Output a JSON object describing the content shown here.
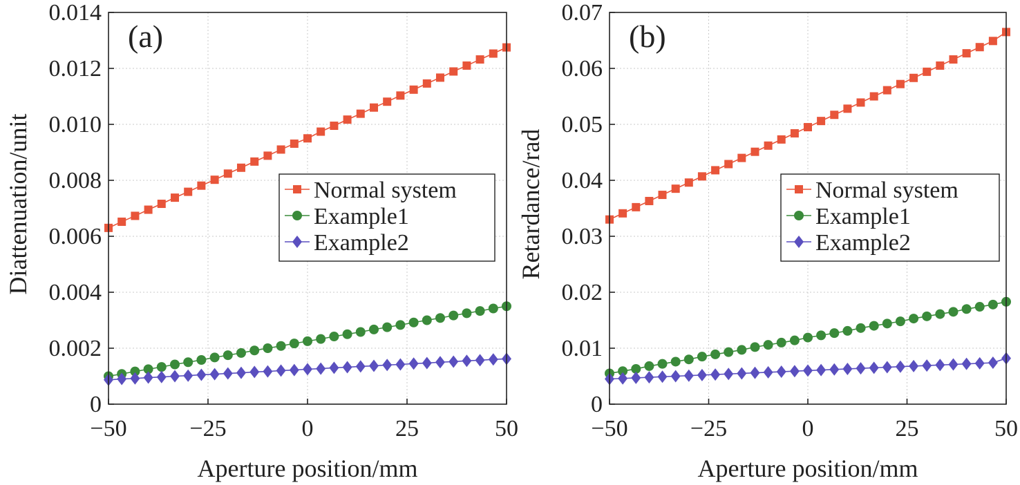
{
  "chart_data": [
    {
      "type": "line",
      "panel_label": "(a)",
      "xlabel": "Aperture position/mm",
      "ylabel": "Diattenuation/unit",
      "xlim": [
        -50,
        50
      ],
      "ylim": [
        0,
        0.014
      ],
      "x_ticks": [
        -50,
        -25,
        0,
        25,
        50
      ],
      "x_tick_labels": [
        "−50",
        "−25",
        "0",
        "25",
        "50"
      ],
      "y_ticks": [
        0,
        0.002,
        0.004,
        0.006,
        0.008,
        0.01,
        0.012,
        0.014
      ],
      "y_tick_labels": [
        "0",
        "0.002",
        "0.004",
        "0.006",
        "0.008",
        "0.010",
        "0.012",
        "0.014"
      ],
      "grid": true,
      "legend_position": "middle-right",
      "x": [
        -50,
        -46.67,
        -43.33,
        -40,
        -36.67,
        -33.33,
        -30,
        -26.67,
        -23.33,
        -20,
        -16.67,
        -13.33,
        -10,
        -6.67,
        -3.33,
        0,
        3.33,
        6.67,
        10,
        13.33,
        16.67,
        20,
        23.33,
        26.67,
        30,
        33.33,
        36.67,
        40,
        43.33,
        46.67,
        50
      ],
      "series": [
        {
          "name": "Normal system",
          "marker": "square",
          "color": "#e8553a",
          "values": [
            0.0063,
            0.00652,
            0.00673,
            0.00695,
            0.00716,
            0.00738,
            0.00759,
            0.00781,
            0.00802,
            0.00824,
            0.00845,
            0.00867,
            0.00888,
            0.0091,
            0.00931,
            0.0095,
            0.00974,
            0.00995,
            0.01017,
            0.01038,
            0.0106,
            0.01081,
            0.01103,
            0.01124,
            0.01146,
            0.01167,
            0.01189,
            0.0121,
            0.01232,
            0.01253,
            0.01275
          ]
        },
        {
          "name": "Example1",
          "marker": "circle",
          "color": "#3a8a3a",
          "values": [
            0.001,
            0.00108,
            0.00117,
            0.00125,
            0.00133,
            0.00142,
            0.0015,
            0.00158,
            0.00167,
            0.00175,
            0.00183,
            0.00192,
            0.002,
            0.00208,
            0.00217,
            0.00225,
            0.00233,
            0.00242,
            0.0025,
            0.00258,
            0.00267,
            0.00275,
            0.00283,
            0.00292,
            0.003,
            0.00308,
            0.00317,
            0.00325,
            0.00333,
            0.00342,
            0.0035
          ]
        },
        {
          "name": "Example2",
          "marker": "diamond",
          "color": "#5a4fbf",
          "values": [
            0.00087,
            0.0009,
            0.00092,
            0.00095,
            0.00097,
            0.001,
            0.00102,
            0.00105,
            0.00107,
            0.0011,
            0.00112,
            0.00115,
            0.00117,
            0.0012,
            0.00122,
            0.00125,
            0.00127,
            0.0013,
            0.00132,
            0.00135,
            0.00137,
            0.0014,
            0.00142,
            0.00145,
            0.00147,
            0.0015,
            0.00152,
            0.00155,
            0.00157,
            0.0016,
            0.00162
          ]
        }
      ]
    },
    {
      "type": "line",
      "panel_label": "(b)",
      "xlabel": "Aperture position/mm",
      "ylabel": "Retardance/rad",
      "xlim": [
        -50,
        50
      ],
      "ylim": [
        0,
        0.07
      ],
      "x_ticks": [
        -50,
        -25,
        0,
        25,
        50
      ],
      "x_tick_labels": [
        "−50",
        "−25",
        "0",
        "25",
        "50"
      ],
      "y_ticks": [
        0,
        0.01,
        0.02,
        0.03,
        0.04,
        0.05,
        0.06,
        0.07
      ],
      "y_tick_labels": [
        "0",
        "0.01",
        "0.02",
        "0.03",
        "0.04",
        "0.05",
        "0.06",
        "0.07"
      ],
      "grid": true,
      "legend_position": "middle-right",
      "x": [
        -50,
        -46.67,
        -43.33,
        -40,
        -36.67,
        -33.33,
        -30,
        -26.67,
        -23.33,
        -20,
        -16.67,
        -13.33,
        -10,
        -6.67,
        -3.33,
        0,
        3.33,
        6.67,
        10,
        13.33,
        16.67,
        20,
        23.33,
        26.67,
        30,
        33.33,
        36.67,
        40,
        43.33,
        46.67,
        50
      ],
      "series": [
        {
          "name": "Normal system",
          "marker": "square",
          "color": "#e8553a",
          "values": [
            0.033,
            0.0341,
            0.0352,
            0.0363,
            0.0374,
            0.0385,
            0.0396,
            0.0407,
            0.0418,
            0.0429,
            0.044,
            0.0451,
            0.0462,
            0.0473,
            0.0484,
            0.0495,
            0.0506,
            0.0517,
            0.0528,
            0.0539,
            0.055,
            0.0561,
            0.0572,
            0.0583,
            0.0594,
            0.0605,
            0.0616,
            0.0627,
            0.0638,
            0.0649,
            0.0665
          ]
        },
        {
          "name": "Example1",
          "marker": "circle",
          "color": "#3a8a3a",
          "values": [
            0.0055,
            0.0059,
            0.0063,
            0.0068,
            0.0072,
            0.0076,
            0.008,
            0.0085,
            0.0089,
            0.0093,
            0.0097,
            0.0102,
            0.0106,
            0.011,
            0.0114,
            0.0119,
            0.0123,
            0.0127,
            0.0131,
            0.0136,
            0.014,
            0.0144,
            0.0148,
            0.0153,
            0.0157,
            0.0161,
            0.0165,
            0.017,
            0.0174,
            0.0178,
            0.0183
          ]
        },
        {
          "name": "Example2",
          "marker": "diamond",
          "color": "#5a4fbf",
          "values": [
            0.0045,
            0.0046,
            0.0047,
            0.0048,
            0.0049,
            0.005,
            0.0051,
            0.0052,
            0.0053,
            0.0054,
            0.0055,
            0.0056,
            0.0057,
            0.0058,
            0.0059,
            0.006,
            0.0061,
            0.0062,
            0.0063,
            0.0064,
            0.0065,
            0.0066,
            0.0067,
            0.0068,
            0.0069,
            0.007,
            0.0071,
            0.0072,
            0.0073,
            0.0074,
            0.0082
          ]
        }
      ]
    }
  ]
}
